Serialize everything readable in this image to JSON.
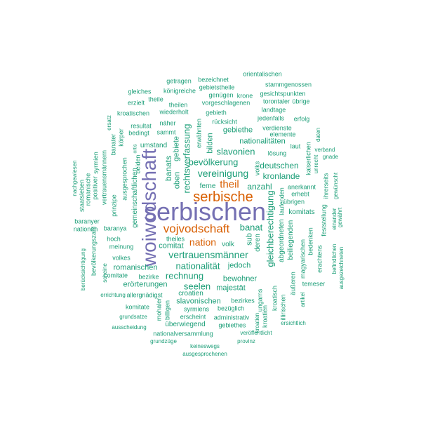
{
  "colors": {
    "large": "#7570b3",
    "mid": "#d95f02",
    "small": "#1b9e77"
  },
  "words": [
    {
      "text": "serbischen",
      "tier": "large"
    },
    {
      "text": "woiwodschaft",
      "tier": "large"
    },
    {
      "text": "serbische",
      "tier": "mid"
    },
    {
      "text": "vojvodschaft",
      "tier": "mid"
    },
    {
      "text": "theil",
      "tier": "mid"
    },
    {
      "text": "nation",
      "tier": "mid"
    },
    {
      "text": "vereinigung",
      "tier": "small"
    },
    {
      "text": "vertrauensmänner",
      "tier": "small"
    },
    {
      "text": "bevölkerung",
      "tier": "small"
    },
    {
      "text": "slavonien",
      "tier": "small"
    },
    {
      "text": "gleichberechtigung",
      "tier": "small"
    },
    {
      "text": "rechtsverfassung",
      "tier": "small"
    },
    {
      "text": "nationalität",
      "tier": "small"
    },
    {
      "text": "rechnung",
      "tier": "small"
    },
    {
      "text": "seelen",
      "tier": "small"
    },
    {
      "text": "banat",
      "tier": "small"
    },
    {
      "text": "banats",
      "tier": "small"
    },
    {
      "text": "anzahl",
      "tier": "small"
    },
    {
      "text": "deutschen",
      "tier": "small"
    },
    {
      "text": "kronlande",
      "tier": "small"
    },
    {
      "text": "nationalitäten",
      "tier": "small"
    },
    {
      "text": "bewohner",
      "tier": "small"
    },
    {
      "text": "majestät",
      "tier": "small"
    },
    {
      "text": "jedoch",
      "tier": "small"
    },
    {
      "text": "gebiethe",
      "tier": "small"
    },
    {
      "text": "gebiete",
      "tier": "small"
    },
    {
      "text": "oben",
      "tier": "small"
    },
    {
      "text": "bilden",
      "tier": "small"
    },
    {
      "text": "sub",
      "tier": "small"
    },
    {
      "text": "deren",
      "tier": "small"
    },
    {
      "text": "comitat",
      "tier": "small"
    },
    {
      "text": "ferne",
      "tier": "small"
    },
    {
      "text": "volk",
      "tier": "small"
    },
    {
      "text": "romanischen",
      "tier": "small"
    },
    {
      "text": "erörterungen",
      "tier": "small"
    },
    {
      "text": "croatien",
      "tier": "small"
    },
    {
      "text": "slavonischen",
      "tier": "small"
    },
    {
      "text": "bezirkes",
      "tier": "small"
    },
    {
      "text": "überwiegend",
      "tier": "small"
    },
    {
      "text": "abgeordneten",
      "tier": "small"
    },
    {
      "text": "beiliegenden",
      "tier": "small"
    },
    {
      "text": "komitats",
      "tier": "small"
    },
    {
      "text": "gemeinschaftlichen",
      "tier": "small"
    },
    {
      "text": "umstand",
      "tier": "small"
    },
    {
      "text": "ungarns",
      "tier": "small"
    },
    {
      "text": "magyarischen",
      "tier": "small"
    },
    {
      "text": "temeser",
      "tier": "small"
    },
    {
      "text": "bedenken",
      "tier": "small"
    },
    {
      "text": "syrmien",
      "tier": "small"
    },
    {
      "text": "baranya",
      "tier": "small"
    },
    {
      "text": "wiederholt",
      "tier": "small"
    },
    {
      "text": "kroatischen",
      "tier": "small"
    },
    {
      "text": "erwähnten",
      "tier": "small"
    },
    {
      "text": "rücksicht",
      "tier": "small"
    },
    {
      "text": "landtage",
      "tier": "small"
    },
    {
      "text": "vorgeschlagenen",
      "tier": "small"
    },
    {
      "text": "torontaler",
      "tier": "small"
    },
    {
      "text": "übrige",
      "tier": "small"
    },
    {
      "text": "gebieth",
      "tier": "small"
    },
    {
      "text": "theilen",
      "tier": "small"
    },
    {
      "text": "königreiche",
      "tier": "small"
    },
    {
      "text": "gleiches",
      "tier": "small"
    },
    {
      "text": "getragen",
      "tier": "small"
    },
    {
      "text": "bezeichnet",
      "tier": "small"
    },
    {
      "text": "gebietstheile",
      "tier": "small"
    },
    {
      "text": "orientalischen",
      "tier": "small"
    },
    {
      "text": "stammgenossen",
      "tier": "small"
    },
    {
      "text": "genügen",
      "tier": "small"
    },
    {
      "text": "krone",
      "tier": "small"
    },
    {
      "text": "gesichtspunkten",
      "tier": "small"
    },
    {
      "text": "erzielt",
      "tier": "small"
    },
    {
      "text": "theile",
      "tier": "small"
    },
    {
      "text": "jedenfalls",
      "tier": "small"
    },
    {
      "text": "erfolg",
      "tier": "small"
    },
    {
      "text": "verdienste",
      "tier": "small"
    },
    {
      "text": "elemente",
      "tier": "small"
    },
    {
      "text": "laut",
      "tier": "small"
    },
    {
      "text": "lösung",
      "tier": "small"
    },
    {
      "text": "resultat",
      "tier": "small"
    },
    {
      "text": "näher",
      "tier": "small"
    },
    {
      "text": "bedingt",
      "tier": "small"
    },
    {
      "text": "sammt",
      "tier": "small"
    },
    {
      "text": "körper",
      "tier": "small"
    },
    {
      "text": "ersatz",
      "tier": "small"
    },
    {
      "text": "banater",
      "tier": "small"
    },
    {
      "text": "beiden",
      "tier": "small"
    },
    {
      "text": "ausgesprochen",
      "tier": "small"
    },
    {
      "text": "prinzipe",
      "tier": "small"
    },
    {
      "text": "vertrauensmännern",
      "tier": "small"
    },
    {
      "text": "romanische",
      "tier": "small"
    },
    {
      "text": "staatsleben",
      "tier": "small"
    },
    {
      "text": "positiver",
      "tier": "small"
    },
    {
      "text": "nachgewiesen",
      "tier": "small"
    },
    {
      "text": "baranyer",
      "tier": "small"
    },
    {
      "text": "nationen",
      "tier": "small"
    },
    {
      "text": "hoch",
      "tier": "small"
    },
    {
      "text": "meinung",
      "tier": "small"
    },
    {
      "text": "volkes",
      "tier": "small"
    },
    {
      "text": "theiles",
      "tier": "small"
    },
    {
      "text": "bevölkerungszahl",
      "tier": "small"
    },
    {
      "text": "berücksichtigung",
      "tier": "small"
    },
    {
      "text": "scheine",
      "tier": "small"
    },
    {
      "text": "comitate",
      "tier": "small"
    },
    {
      "text": "bezirke",
      "tier": "small"
    },
    {
      "text": "allergnädigst",
      "tier": "small"
    },
    {
      "text": "errichtung",
      "tier": "small"
    },
    {
      "text": "komitate",
      "tier": "small"
    },
    {
      "text": "grundsatze",
      "tier": "small"
    },
    {
      "text": "ausscheidung",
      "tier": "small"
    },
    {
      "text": "grundzüge",
      "tier": "small"
    },
    {
      "text": "nationalversammlung",
      "tier": "small"
    },
    {
      "text": "keineswegs",
      "tier": "small"
    },
    {
      "text": "ausgesprochenen",
      "tier": "small"
    },
    {
      "text": "provinz",
      "tier": "small"
    },
    {
      "text": "veröffentlicht",
      "tier": "small"
    },
    {
      "text": "gebiethes",
      "tier": "small"
    },
    {
      "text": "administrativ",
      "tier": "small"
    },
    {
      "text": "bezüglich",
      "tier": "small"
    },
    {
      "text": "syrmiens",
      "tier": "small"
    },
    {
      "text": "erscheint",
      "tier": "small"
    },
    {
      "text": "billigen",
      "tier": "small"
    },
    {
      "text": "mohaler",
      "tier": "small"
    },
    {
      "text": "kroatien",
      "tier": "small"
    },
    {
      "text": "kroatisch",
      "tier": "small"
    },
    {
      "text": "illirischen",
      "tier": "small"
    },
    {
      "text": "äußeren",
      "tier": "small"
    },
    {
      "text": "erhebt",
      "tier": "small"
    },
    {
      "text": "übrigen",
      "tier": "small"
    },
    {
      "text": "anerkannt",
      "tier": "small"
    },
    {
      "text": "laufenden",
      "tier": "small"
    },
    {
      "text": "artikel",
      "tier": "small"
    },
    {
      "text": "ersichtlich",
      "tier": "small"
    },
    {
      "text": "erachtens",
      "tier": "small"
    },
    {
      "text": "feststellung",
      "tier": "small"
    },
    {
      "text": "befindlichen",
      "tier": "small"
    },
    {
      "text": "ausgezeichneten",
      "tier": "small"
    },
    {
      "text": "ihrerseits",
      "tier": "small"
    },
    {
      "text": "einander",
      "tier": "small"
    },
    {
      "text": "gewährt",
      "tier": "small"
    },
    {
      "text": "gewünscht",
      "tier": "small"
    },
    {
      "text": "kaiserlichen",
      "tier": "small"
    },
    {
      "text": "unrecht",
      "tier": "small"
    },
    {
      "text": "gnade",
      "tier": "small"
    },
    {
      "text": "verband",
      "tier": "small"
    },
    {
      "text": "daten",
      "tier": "small"
    },
    {
      "text": "kroatien",
      "tier": "small"
    },
    {
      "text": "ortis",
      "tier": "small"
    },
    {
      "text": "volks",
      "tier": "small"
    }
  ]
}
